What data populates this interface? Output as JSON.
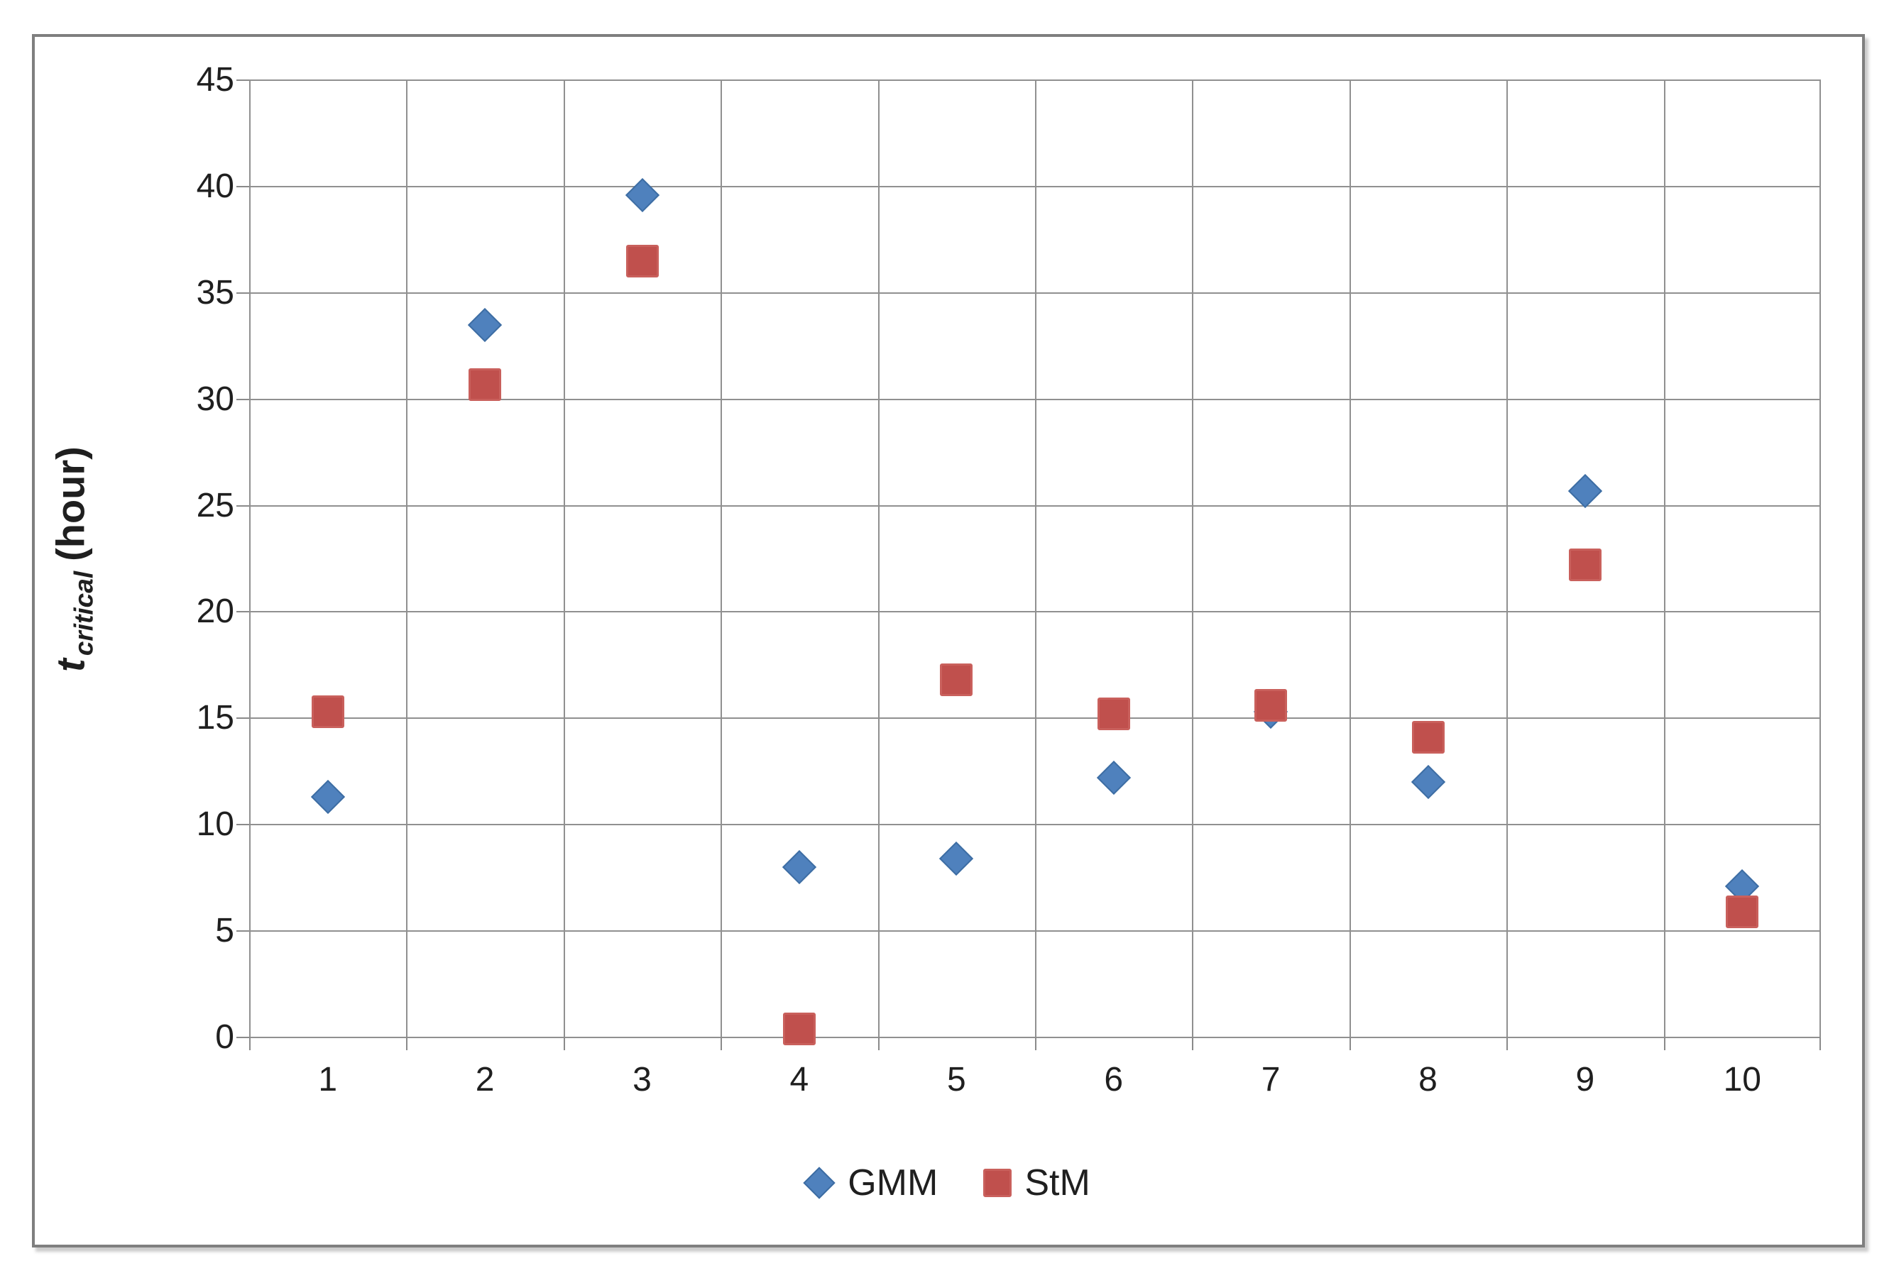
{
  "chart_data": {
    "type": "scatter",
    "title": "",
    "xlabel": "",
    "ylabel": {
      "main": "t",
      "subscript": "critical",
      "unit": "(hour)"
    },
    "x": [
      1,
      2,
      3,
      4,
      5,
      6,
      7,
      8,
      9,
      10
    ],
    "series": [
      {
        "name": "GMM",
        "marker": "diamond",
        "color": "#4F81BD",
        "values": [
          11.3,
          33.5,
          39.6,
          8.0,
          8.4,
          12.2,
          15.3,
          12.0,
          25.7,
          7.1
        ]
      },
      {
        "name": "StM",
        "marker": "square",
        "color": "#C0504D",
        "values": [
          15.3,
          30.7,
          36.5,
          0.4,
          16.8,
          15.2,
          15.6,
          14.1,
          22.2,
          5.9
        ]
      }
    ],
    "xlim": [
      0.5,
      10.5
    ],
    "ylim": [
      0,
      45
    ],
    "x_tick_labels": [
      "1",
      "2",
      "3",
      "4",
      "5",
      "6",
      "7",
      "8",
      "9",
      "10"
    ],
    "y_tick_labels": [
      "0",
      "5",
      "10",
      "15",
      "20",
      "25",
      "30",
      "35",
      "40",
      "45"
    ],
    "y_tick_step": 5,
    "grid": true,
    "gridline_color": "#909090",
    "legend_position": "bottom-center",
    "legend_entries": [
      "GMM",
      "StM"
    ]
  }
}
